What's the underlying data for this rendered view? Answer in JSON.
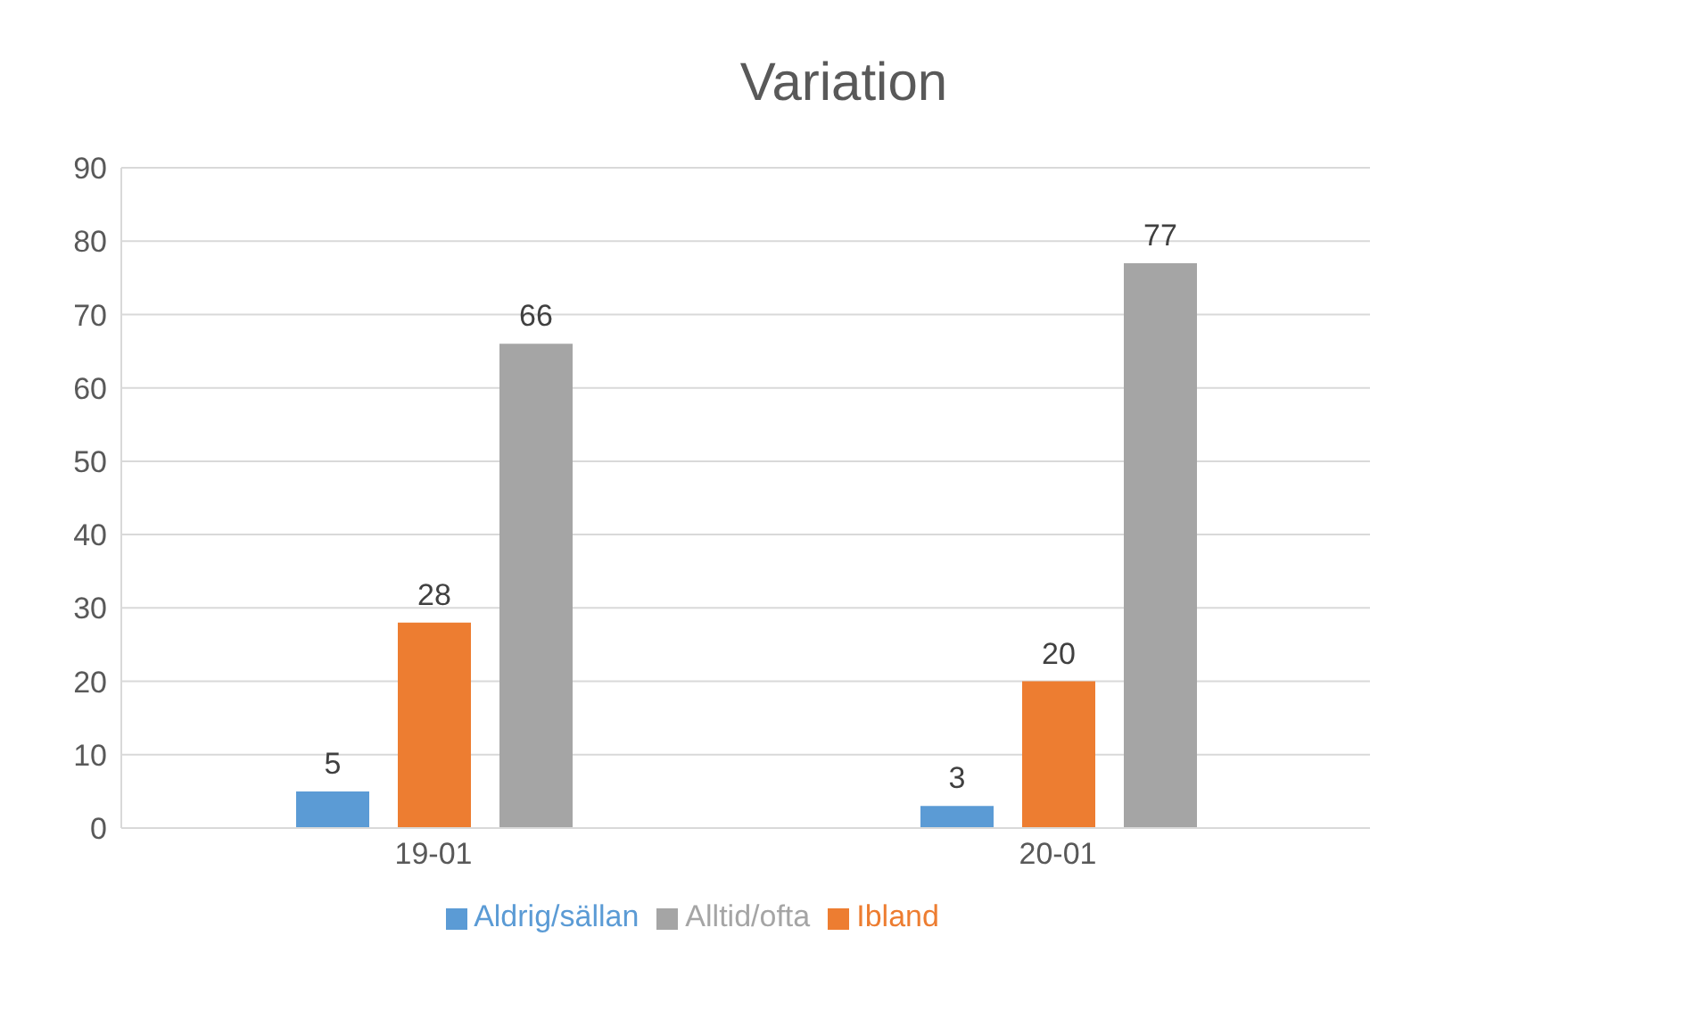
{
  "chart_data": {
    "type": "bar",
    "title": "Variation",
    "categories": [
      "19-01",
      "20-01"
    ],
    "series": [
      {
        "name": "Aldrig/sällan",
        "color": "#5b9bd5",
        "values": [
          5,
          3
        ]
      },
      {
        "name": "Ibland",
        "color": "#ed7d31",
        "values": [
          28,
          20
        ]
      },
      {
        "name": "Alltid/ofta",
        "color": "#a5a5a5",
        "values": [
          66,
          77
        ]
      }
    ],
    "ylim": [
      0,
      90
    ],
    "yticks": [
      0,
      10,
      20,
      30,
      40,
      50,
      60,
      70,
      80,
      90
    ],
    "grid": "y",
    "legend": "bottom",
    "data_labels": true
  }
}
